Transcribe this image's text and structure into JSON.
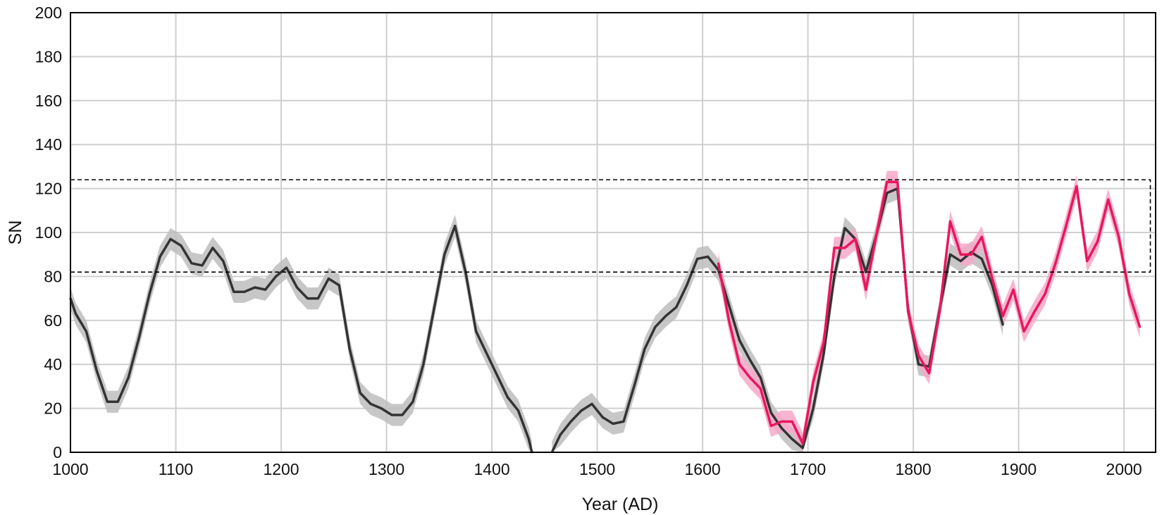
{
  "chart_data": {
    "type": "line",
    "title": "",
    "xlabel": "Year (AD)",
    "ylabel": "SN",
    "xlim": [
      1000,
      2030
    ],
    "ylim": [
      0,
      200
    ],
    "x_ticks": [
      "1000",
      "1100",
      "1200",
      "1300",
      "1400",
      "1500",
      "1600",
      "1700",
      "1800",
      "1900",
      "2000"
    ],
    "y_ticks": [
      "0",
      "20",
      "40",
      "60",
      "80",
      "100",
      "120",
      "140",
      "160",
      "180",
      "200"
    ],
    "grid": true,
    "reference_box": {
      "x": [
        1000,
        2025
      ],
      "y": [
        82,
        124
      ],
      "style": "dashed"
    },
    "series": [
      {
        "color": "#333333",
        "band_color": "#bdbdbd",
        "band_halfwidth": 5,
        "segments": [
          {
            "x": [
              1000,
              1005,
              1015,
              1025,
              1035,
              1045,
              1055,
              1065,
              1075,
              1085,
              1095,
              1105,
              1115,
              1125,
              1135,
              1145,
              1155,
              1165,
              1175,
              1185,
              1195,
              1205,
              1215,
              1225,
              1235,
              1245,
              1255,
              1265,
              1275,
              1285,
              1295,
              1305,
              1315,
              1325,
              1335,
              1345,
              1355,
              1365,
              1375,
              1385,
              1395,
              1405,
              1415,
              1425,
              1435,
              1438
            ],
            "y": [
              70,
              63,
              55,
              37,
              23,
              23,
              34,
              52,
              72,
              89,
              97,
              94,
              86,
              85,
              93,
              87,
              73,
              73,
              75,
              74,
              80,
              84,
              75,
              70,
              70,
              79,
              76,
              47,
              27,
              22,
              20,
              17,
              17,
              23,
              40,
              65,
              90,
              103,
              82,
              55,
              45,
              35,
              25,
              19,
              6,
              0
            ]
          },
          {
            "x": [
              1457,
              1465,
              1475,
              1485,
              1495,
              1505,
              1515,
              1525,
              1535,
              1545,
              1555,
              1565,
              1575,
              1585,
              1595,
              1605,
              1615,
              1625,
              1635,
              1645,
              1655,
              1665,
              1675,
              1685,
              1695,
              1705,
              1715,
              1725,
              1735,
              1745,
              1755,
              1765,
              1775,
              1785,
              1795,
              1805,
              1815,
              1825,
              1835,
              1845,
              1855,
              1865,
              1875,
              1885
            ],
            "y": [
              0,
              8,
              14,
              19,
              22,
              16,
              13,
              14,
              30,
              47,
              57,
              62,
              66,
              76,
              88,
              89,
              83,
              67,
              51,
              42,
              34,
              18,
              11,
              6,
              2,
              20,
              45,
              80,
              102,
              97,
              82,
              99,
              118,
              120,
              65,
              40,
              39,
              65,
              90,
              87,
              91,
              88,
              76,
              58
            ]
          }
        ]
      },
      {
        "color": "#e8175d",
        "band_color": "#f7a8c9",
        "band_halfwidth": 5,
        "segments": [
          {
            "x": [
              1615,
              1625,
              1635,
              1645,
              1655,
              1665,
              1675,
              1685,
              1695,
              1705,
              1715,
              1725,
              1735,
              1745,
              1755,
              1765,
              1775,
              1785,
              1795,
              1805,
              1815,
              1825,
              1835,
              1845,
              1855,
              1865,
              1875,
              1885,
              1895,
              1905,
              1915,
              1925,
              1935,
              1945,
              1955,
              1965,
              1975,
              1985,
              1995,
              2005,
              2015
            ],
            "y": [
              86,
              60,
              40,
              34,
              29,
              12,
              14,
              14,
              4,
              32,
              50,
              93,
              93,
              97,
              74,
              99,
              123,
              123,
              64,
              44,
              36,
              64,
              105,
              90,
              90,
              98,
              79,
              62,
              74,
              55,
              64,
              72,
              86,
              103,
              121,
              87,
              96,
              115,
              98,
              72,
              57
            ]
          }
        ]
      }
    ]
  }
}
